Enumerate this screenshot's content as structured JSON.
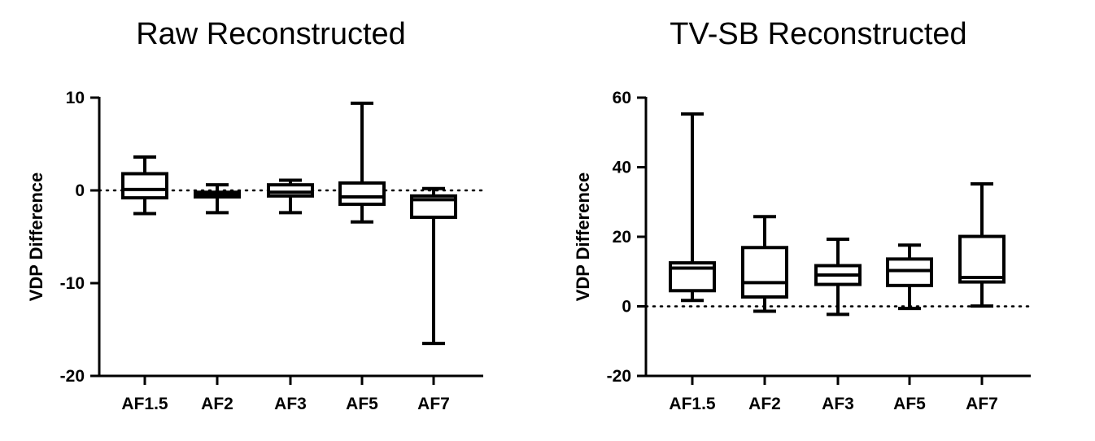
{
  "chart_data": [
    {
      "type": "boxplot",
      "title": "Raw Reconstructed",
      "xlabel": "",
      "ylabel": "VDP Difference",
      "ylim": [
        -20,
        10
      ],
      "yticks": [
        10,
        0,
        -10,
        -20
      ],
      "reference_line": 0,
      "categories": [
        "AF1.5",
        "AF2",
        "AF3",
        "AF5",
        "AF7"
      ],
      "boxes": [
        {
          "min": -2.5,
          "q1": -0.8,
          "median": 0.1,
          "q3": 1.8,
          "max": 3.6
        },
        {
          "min": -2.4,
          "q1": -0.7,
          "median": -0.4,
          "q3": -0.2,
          "max": 0.6
        },
        {
          "min": -2.4,
          "q1": -0.6,
          "median": -0.2,
          "q3": 0.6,
          "max": 1.1
        },
        {
          "min": -3.4,
          "q1": -1.5,
          "median": -0.7,
          "q3": 0.8,
          "max": 9.4
        },
        {
          "min": -16.5,
          "q1": -2.9,
          "median": -1.0,
          "q3": -0.6,
          "max": 0.2
        }
      ]
    },
    {
      "type": "boxplot",
      "title": "TV-SB Reconstructed",
      "xlabel": "",
      "ylabel": "VDP Difference",
      "ylim": [
        -20,
        60
      ],
      "yticks": [
        60,
        40,
        20,
        0,
        -20
      ],
      "reference_line": 0,
      "categories": [
        "AF1.5",
        "AF2",
        "AF3",
        "AF5",
        "AF7"
      ],
      "boxes": [
        {
          "min": 1.7,
          "q1": 4.5,
          "median": 11.0,
          "q3": 12.5,
          "max": 55.3
        },
        {
          "min": -1.4,
          "q1": 2.7,
          "median": 6.8,
          "q3": 16.9,
          "max": 25.8
        },
        {
          "min": -2.3,
          "q1": 6.3,
          "median": 9.0,
          "q3": 11.7,
          "max": 19.3
        },
        {
          "min": -0.6,
          "q1": 6.0,
          "median": 10.3,
          "q3": 13.6,
          "max": 17.6
        },
        {
          "min": 0.1,
          "q1": 7.0,
          "median": 8.3,
          "q3": 20.1,
          "max": 35.2
        }
      ]
    }
  ]
}
